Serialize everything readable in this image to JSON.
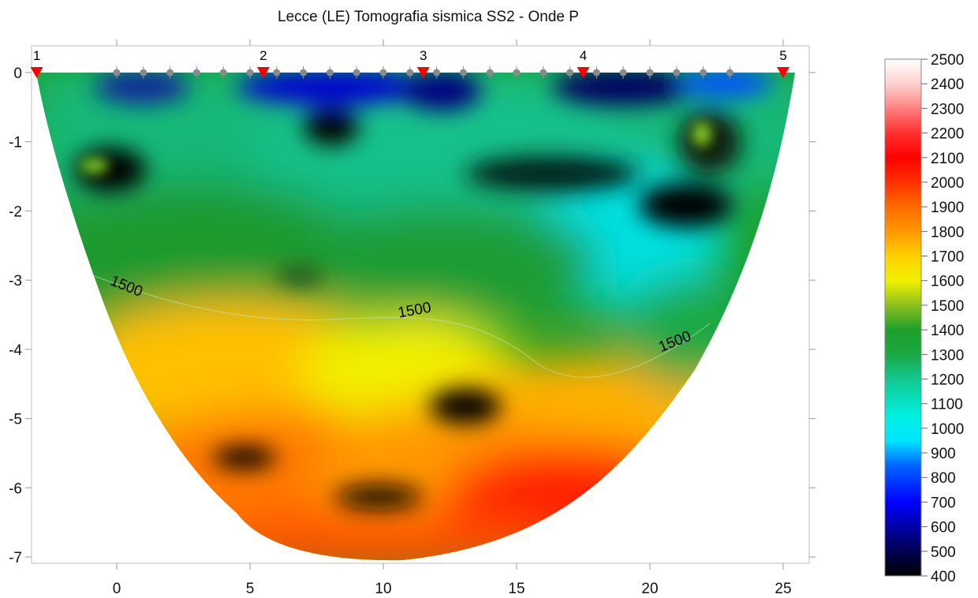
{
  "chart_data": {
    "type": "heatmap",
    "title": "Lecce (LE) Tomografia sismica SS2 - Onde P",
    "xlabel": "",
    "ylabel": "",
    "xlim": [
      -3,
      26
    ],
    "ylim": [
      -7.1,
      0.35
    ],
    "x_ticks": [
      0,
      5,
      10,
      15,
      20,
      25
    ],
    "y_ticks": [
      0,
      -1,
      -2,
      -3,
      -4,
      -5,
      -6,
      -7
    ],
    "colorbar": {
      "min": 400,
      "max": 2500,
      "ticks": [
        2500,
        2400,
        2300,
        2200,
        2100,
        2000,
        1900,
        1800,
        1700,
        1600,
        1500,
        1400,
        1300,
        1200,
        1100,
        1000,
        900,
        800,
        700,
        600,
        500,
        400
      ],
      "stops": [
        {
          "v": 400,
          "color": "#000000"
        },
        {
          "v": 550,
          "color": "#00007a"
        },
        {
          "v": 700,
          "color": "#0000ff"
        },
        {
          "v": 850,
          "color": "#0066ff"
        },
        {
          "v": 950,
          "color": "#00e5ff"
        },
        {
          "v": 1050,
          "color": "#00f0e0"
        },
        {
          "v": 1200,
          "color": "#12c890"
        },
        {
          "v": 1300,
          "color": "#1aa844"
        },
        {
          "v": 1400,
          "color": "#1e9e2a"
        },
        {
          "v": 1500,
          "color": "#8cc020"
        },
        {
          "v": 1600,
          "color": "#f0f000"
        },
        {
          "v": 1700,
          "color": "#ffd000"
        },
        {
          "v": 1800,
          "color": "#ff9800"
        },
        {
          "v": 1900,
          "color": "#ff6a00"
        },
        {
          "v": 2000,
          "color": "#ff3000"
        },
        {
          "v": 2100,
          "color": "#ff0000"
        },
        {
          "v": 2200,
          "color": "#ff3030"
        },
        {
          "v": 2300,
          "color": "#ff8080"
        },
        {
          "v": 2400,
          "color": "#ffd0d0"
        },
        {
          "v": 2500,
          "color": "#ffffff"
        }
      ]
    },
    "shots": [
      {
        "label": "1",
        "x": -3
      },
      {
        "label": "2",
        "x": 5.5
      },
      {
        "label": "3",
        "x": 11.5
      },
      {
        "label": "4",
        "x": 17.5
      },
      {
        "label": "5",
        "x": 25
      }
    ],
    "geophones_x": [
      0,
      1,
      2,
      3,
      4,
      5,
      6,
      7,
      8,
      9,
      10,
      11,
      12,
      13,
      14,
      15,
      16,
      17,
      18,
      19,
      20,
      21,
      22,
      23
    ],
    "contour_labels": [
      {
        "text": "1500",
        "x": 0.3,
        "y": -3.15,
        "angle": 22
      },
      {
        "text": "1500",
        "x": 11.2,
        "y": -3.5,
        "angle": -10
      },
      {
        "text": "1500",
        "x": 21.0,
        "y": -3.95,
        "angle": -22
      }
    ],
    "colors": {
      "shot_marker": "#ff0000",
      "geophone_marker": "#8a8a8a"
    }
  }
}
